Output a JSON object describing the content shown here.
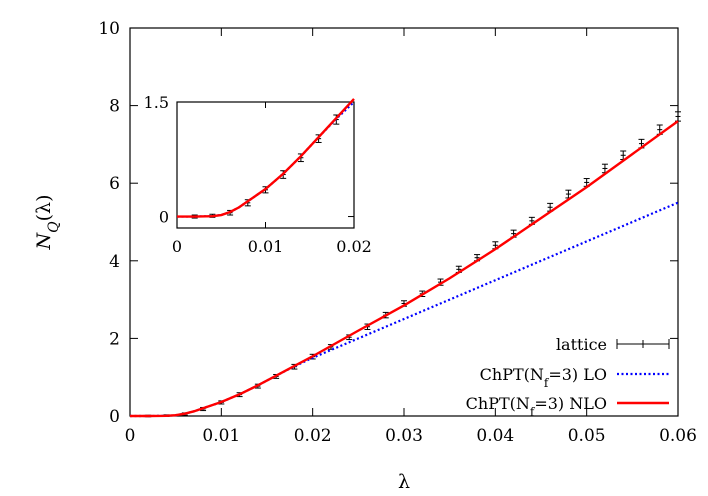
{
  "chart_data": {
    "type": "scatter",
    "xlabel": "λ",
    "ylabel_main": "N",
    "ylabel_sub": "Q",
    "ylabel_paren": "(λ)",
    "xlim": [
      0,
      0.06
    ],
    "ylim": [
      0,
      10
    ],
    "x_ticks": [
      {
        "value": 0,
        "label": "0"
      },
      {
        "value": 0.01,
        "label": "0.01"
      },
      {
        "value": 0.02,
        "label": "0.02"
      },
      {
        "value": 0.03,
        "label": "0.03"
      },
      {
        "value": 0.04,
        "label": "0.04"
      },
      {
        "value": 0.05,
        "label": "0.05"
      },
      {
        "value": 0.06,
        "label": "0.06"
      }
    ],
    "y_ticks": [
      {
        "value": 0,
        "label": "0"
      },
      {
        "value": 2,
        "label": "2"
      },
      {
        "value": 4,
        "label": "4"
      },
      {
        "value": 6,
        "label": "6"
      },
      {
        "value": 8,
        "label": "8"
      },
      {
        "value": 10,
        "label": "10"
      }
    ],
    "legend_position": "bottom-right",
    "series": [
      {
        "name": "lattice",
        "style": "points-with-errorbars",
        "color": "#000000",
        "points": [
          {
            "x": 0.002,
            "y": 0.0,
            "err": 0.02
          },
          {
            "x": 0.004,
            "y": 0.01,
            "err": 0.02
          },
          {
            "x": 0.006,
            "y": 0.05,
            "err": 0.03
          },
          {
            "x": 0.008,
            "y": 0.18,
            "err": 0.04
          },
          {
            "x": 0.01,
            "y": 0.35,
            "err": 0.04
          },
          {
            "x": 0.012,
            "y": 0.55,
            "err": 0.05
          },
          {
            "x": 0.014,
            "y": 0.77,
            "err": 0.05
          },
          {
            "x": 0.016,
            "y": 1.02,
            "err": 0.05
          },
          {
            "x": 0.018,
            "y": 1.27,
            "err": 0.06
          },
          {
            "x": 0.02,
            "y": 1.53,
            "err": 0.06
          },
          {
            "x": 0.022,
            "y": 1.78,
            "err": 0.06
          },
          {
            "x": 0.024,
            "y": 2.03,
            "err": 0.06
          },
          {
            "x": 0.026,
            "y": 2.3,
            "err": 0.07
          },
          {
            "x": 0.028,
            "y": 2.6,
            "err": 0.07
          },
          {
            "x": 0.03,
            "y": 2.9,
            "err": 0.07
          },
          {
            "x": 0.032,
            "y": 3.15,
            "err": 0.07
          },
          {
            "x": 0.034,
            "y": 3.45,
            "err": 0.08
          },
          {
            "x": 0.036,
            "y": 3.78,
            "err": 0.08
          },
          {
            "x": 0.038,
            "y": 4.08,
            "err": 0.08
          },
          {
            "x": 0.04,
            "y": 4.4,
            "err": 0.09
          },
          {
            "x": 0.042,
            "y": 4.7,
            "err": 0.09
          },
          {
            "x": 0.044,
            "y": 5.03,
            "err": 0.09
          },
          {
            "x": 0.046,
            "y": 5.38,
            "err": 0.1
          },
          {
            "x": 0.048,
            "y": 5.72,
            "err": 0.1
          },
          {
            "x": 0.05,
            "y": 6.02,
            "err": 0.1
          },
          {
            "x": 0.052,
            "y": 6.38,
            "err": 0.11
          },
          {
            "x": 0.054,
            "y": 6.72,
            "err": 0.11
          },
          {
            "x": 0.056,
            "y": 7.02,
            "err": 0.11
          },
          {
            "x": 0.058,
            "y": 7.38,
            "err": 0.12
          },
          {
            "x": 0.06,
            "y": 7.72,
            "err": 0.12
          }
        ]
      },
      {
        "name": "ChPT(N",
        "name_sub": "f",
        "name_tail": "=3) LO",
        "style": "dotted-line",
        "color": "#0000ff",
        "x": [
          0,
          0.002,
          0.004,
          0.005,
          0.006,
          0.007,
          0.008,
          0.009,
          0.01,
          0.012,
          0.014,
          0.016,
          0.018,
          0.02,
          0.025,
          0.03,
          0.035,
          0.04,
          0.045,
          0.05,
          0.055,
          0.06
        ],
        "y": [
          0,
          0,
          0.005,
          0.02,
          0.06,
          0.12,
          0.2,
          0.28,
          0.36,
          0.56,
          0.79,
          1.04,
          1.28,
          1.5,
          2.0,
          2.5,
          3.0,
          3.5,
          4.0,
          4.5,
          5.0,
          5.5
        ]
      },
      {
        "name": "ChPT(N",
        "name_sub": "f",
        "name_tail": "=3) NLO",
        "style": "solid-line",
        "color": "#ff0000",
        "x": [
          0,
          0.002,
          0.004,
          0.005,
          0.006,
          0.007,
          0.008,
          0.009,
          0.01,
          0.012,
          0.014,
          0.016,
          0.018,
          0.02,
          0.025,
          0.03,
          0.035,
          0.04,
          0.045,
          0.05,
          0.055,
          0.06
        ],
        "y": [
          0,
          0,
          0.005,
          0.02,
          0.06,
          0.12,
          0.2,
          0.28,
          0.36,
          0.56,
          0.79,
          1.04,
          1.29,
          1.54,
          2.2,
          2.85,
          3.55,
          4.3,
          5.1,
          5.9,
          6.75,
          7.6
        ]
      }
    ],
    "inset": {
      "xlim": [
        0,
        0.02
      ],
      "ylim": [
        -0.15,
        1.5
      ],
      "x_ticks": [
        {
          "value": 0,
          "label": "0"
        },
        {
          "value": 0.01,
          "label": "0.01"
        },
        {
          "value": 0.02,
          "label": "0.02"
        }
      ],
      "y_ticks": [
        {
          "value": 0,
          "label": "0"
        },
        {
          "value": 1.5,
          "label": "1.5"
        }
      ]
    }
  }
}
